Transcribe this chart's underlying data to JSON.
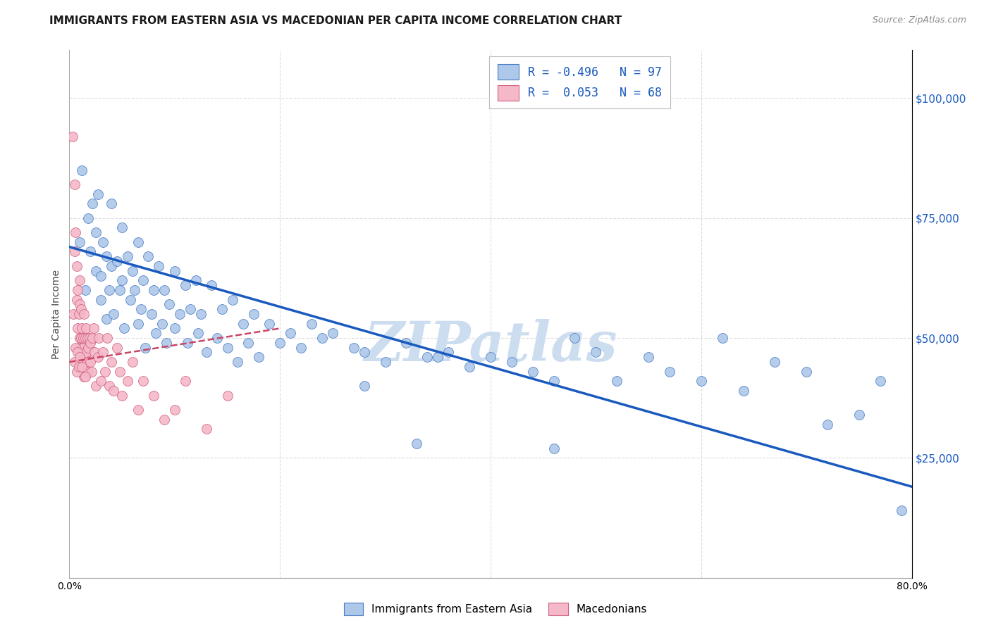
{
  "title": "IMMIGRANTS FROM EASTERN ASIA VS MACEDONIAN PER CAPITA INCOME CORRELATION CHART",
  "source_text": "Source: ZipAtlas.com",
  "ylabel": "Per Capita Income",
  "xlim": [
    0.0,
    0.8
  ],
  "ylim": [
    0,
    110000
  ],
  "yticks": [
    0,
    25000,
    50000,
    75000,
    100000
  ],
  "xticks": [
    0.0,
    0.2,
    0.4,
    0.6,
    0.8
  ],
  "blue_R": -0.496,
  "blue_N": 97,
  "pink_R": 0.053,
  "pink_N": 68,
  "blue_color": "#adc8e8",
  "blue_edge_color": "#4a7cc7",
  "blue_line_color": "#1a5abf",
  "pink_color": "#f5b8c8",
  "pink_edge_color": "#d06080",
  "pink_line_color": "#cc4466",
  "watermark": "ZIPatlas",
  "watermark_color": "#ccddf0",
  "background_color": "#ffffff",
  "grid_color": "#dddddd",
  "title_fontsize": 11,
  "blue_scatter_x": [
    0.01,
    0.012,
    0.015,
    0.018,
    0.02,
    0.022,
    0.025,
    0.025,
    0.027,
    0.03,
    0.03,
    0.032,
    0.035,
    0.035,
    0.038,
    0.04,
    0.04,
    0.042,
    0.045,
    0.048,
    0.05,
    0.05,
    0.052,
    0.055,
    0.058,
    0.06,
    0.062,
    0.065,
    0.065,
    0.068,
    0.07,
    0.072,
    0.075,
    0.078,
    0.08,
    0.082,
    0.085,
    0.088,
    0.09,
    0.092,
    0.095,
    0.1,
    0.1,
    0.105,
    0.11,
    0.112,
    0.115,
    0.12,
    0.122,
    0.125,
    0.13,
    0.135,
    0.14,
    0.145,
    0.15,
    0.155,
    0.16,
    0.165,
    0.17,
    0.175,
    0.18,
    0.19,
    0.2,
    0.21,
    0.22,
    0.23,
    0.24,
    0.25,
    0.27,
    0.28,
    0.3,
    0.32,
    0.34,
    0.36,
    0.38,
    0.4,
    0.42,
    0.44,
    0.46,
    0.48,
    0.5,
    0.52,
    0.55,
    0.57,
    0.6,
    0.62,
    0.64,
    0.67,
    0.7,
    0.72,
    0.75,
    0.77,
    0.35,
    0.28,
    0.33,
    0.46,
    0.79
  ],
  "blue_scatter_y": [
    70000,
    85000,
    60000,
    75000,
    68000,
    78000,
    64000,
    72000,
    80000,
    58000,
    63000,
    70000,
    54000,
    67000,
    60000,
    65000,
    78000,
    55000,
    66000,
    60000,
    62000,
    73000,
    52000,
    67000,
    58000,
    64000,
    60000,
    53000,
    70000,
    56000,
    62000,
    48000,
    67000,
    55000,
    60000,
    51000,
    65000,
    53000,
    60000,
    49000,
    57000,
    52000,
    64000,
    55000,
    61000,
    49000,
    56000,
    62000,
    51000,
    55000,
    47000,
    61000,
    50000,
    56000,
    48000,
    58000,
    45000,
    53000,
    49000,
    55000,
    46000,
    53000,
    49000,
    51000,
    48000,
    53000,
    50000,
    51000,
    48000,
    47000,
    45000,
    49000,
    46000,
    47000,
    44000,
    46000,
    45000,
    43000,
    41000,
    50000,
    47000,
    41000,
    46000,
    43000,
    41000,
    50000,
    39000,
    45000,
    43000,
    32000,
    34000,
    41000,
    46000,
    40000,
    28000,
    27000,
    14000
  ],
  "pink_scatter_x": [
    0.003,
    0.004,
    0.005,
    0.005,
    0.006,
    0.007,
    0.007,
    0.008,
    0.008,
    0.009,
    0.009,
    0.01,
    0.01,
    0.01,
    0.011,
    0.011,
    0.012,
    0.012,
    0.013,
    0.013,
    0.014,
    0.014,
    0.015,
    0.015,
    0.016,
    0.016,
    0.017,
    0.017,
    0.018,
    0.018,
    0.019,
    0.02,
    0.02,
    0.021,
    0.022,
    0.023,
    0.024,
    0.025,
    0.027,
    0.028,
    0.03,
    0.032,
    0.034,
    0.036,
    0.038,
    0.04,
    0.042,
    0.045,
    0.048,
    0.05,
    0.055,
    0.06,
    0.065,
    0.07,
    0.08,
    0.09,
    0.1,
    0.11,
    0.13,
    0.15,
    0.005,
    0.006,
    0.007,
    0.008,
    0.009,
    0.01,
    0.012,
    0.015
  ],
  "pink_scatter_y": [
    92000,
    55000,
    68000,
    82000,
    72000,
    58000,
    65000,
    60000,
    52000,
    48000,
    55000,
    62000,
    57000,
    50000,
    50000,
    56000,
    52000,
    47000,
    50000,
    48000,
    42000,
    55000,
    50000,
    46000,
    52000,
    47000,
    45000,
    50000,
    48000,
    43000,
    50000,
    49000,
    45000,
    43000,
    50000,
    52000,
    47000,
    40000,
    46000,
    50000,
    41000,
    47000,
    43000,
    50000,
    40000,
    45000,
    39000,
    48000,
    43000,
    38000,
    41000,
    45000,
    35000,
    41000,
    38000,
    33000,
    35000,
    41000,
    31000,
    38000,
    45000,
    48000,
    43000,
    47000,
    44000,
    46000,
    44000,
    42000
  ],
  "blue_trend_x": [
    0.0,
    0.8
  ],
  "blue_trend_y": [
    69000,
    19000
  ],
  "pink_trend_x": [
    0.0,
    0.2
  ],
  "pink_trend_y": [
    45000,
    52000
  ]
}
